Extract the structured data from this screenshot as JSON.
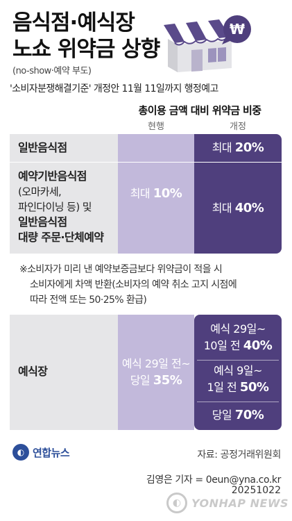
{
  "title_line1": "음식점·예식장",
  "title_line2": "노쇼 위약금 상향",
  "subtitle": "(no-show·예약 부도)",
  "lead": "'소비자분쟁해결기준' 개정안 11월 11일까지 행정예고",
  "table": {
    "title": "총이용 금액 대비 위약금 비중",
    "col_current": "현행",
    "col_revised": "개정",
    "row1_label": "일반음식점",
    "row1_revised_prefix": "최대 ",
    "row1_revised_value": "20%",
    "row2_label_line1": "예약기반음식점",
    "row2_label_line2": "(오마카세,",
    "row2_label_line3": "파인다이닝 등) 및",
    "row2_label_line4": "일반음식점",
    "row2_label_line5": "대량 주문·단체예약",
    "row12_current_prefix": "최대 ",
    "row12_current_value": "10%",
    "row2_revised_prefix": "최대 ",
    "row2_revised_value": "40%",
    "row3_label": "예식장",
    "row3_current_line1": "예식 29일 전~",
    "row3_current_line2_prefix": "당일 ",
    "row3_current_line2_value": "35%",
    "row3_rev_a_line1": "예식 29일~",
    "row3_rev_a_line2_prefix": "10일 전 ",
    "row3_rev_a_line2_value": "40%",
    "row3_rev_b_line1": "예식 9일~",
    "row3_rev_b_line2_prefix": "1일 전 ",
    "row3_rev_b_line2_value": "50%",
    "row3_rev_c_prefix": "당일 ",
    "row3_rev_c_value": "70%"
  },
  "note_line1": "※소비자가 미리 낸 예약보증금보다 위약금이 적을 시",
  "note_line2": "소비자에게 차액 반환(소비자의 예약 취소 고지 시점에",
  "note_line3": "따라 전액 또는 50·25% 환급)",
  "source": "자료: 공정거래위원회",
  "logo_text": "연합뉴스",
  "credit": "김영은 기자 = 0eun@yna.co.kr",
  "date": "20251022",
  "watermark": "YONHAP NEWS",
  "colors": {
    "dark_purple": "#4f3f7d",
    "light_purple": "#c2b9db",
    "gray_panel": "#e6e6e8"
  },
  "icons": [
    "store-icon",
    "won-bubble-icon",
    "yonhap-logo-icon"
  ]
}
